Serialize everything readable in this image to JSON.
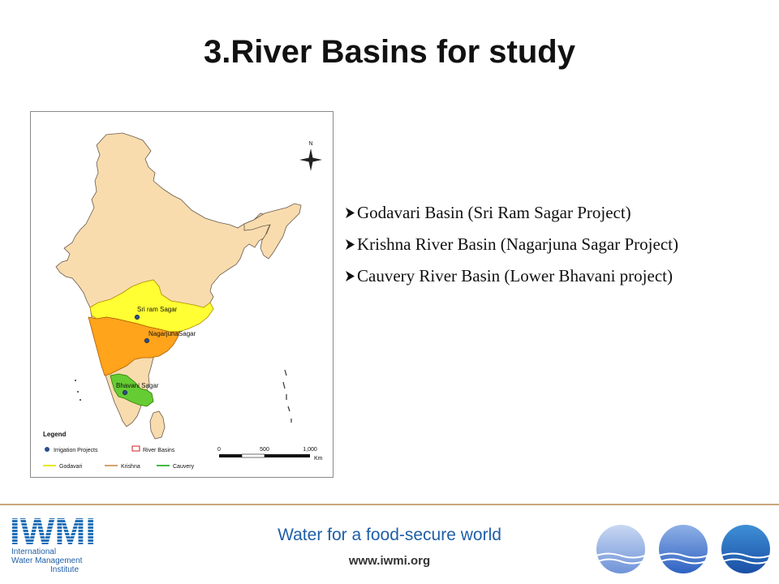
{
  "slide": {
    "title": "3.River Basins for study",
    "bullets": [
      "Godavari Basin (Sri Ram Sagar Project)",
      "Krishna River Basin (Nagarjuna Sagar Project)",
      "Cauvery River Basin (Lower Bhavani project)"
    ]
  },
  "map": {
    "north_label": "N",
    "places": [
      {
        "name": "Sri ram Sagar",
        "x": 168,
        "y": 390
      },
      {
        "name": "NagarjunaSagar",
        "x": 180,
        "y": 419
      },
      {
        "name": "Bhavani Sagar",
        "x": 153,
        "y": 483
      }
    ],
    "legend": {
      "title": "Legend",
      "irrigation": "Irrigation Projects",
      "river_basins": "River Basins",
      "godavari": "Godavari",
      "krishna": "Krishna",
      "cauvery": "Cauvery"
    },
    "scale": {
      "labels": [
        "0",
        "500",
        "1,000"
      ],
      "unit": "Km"
    },
    "colors": {
      "land": "#f8dcae",
      "godavari": "#ffff33",
      "krishna": "#ffa41b",
      "cauvery": "#66cc33",
      "point": "#2a4e8e"
    }
  },
  "footer": {
    "tagline": "Water for a food-secure world",
    "url": "www.iwmi.org",
    "logo_text": "IWMI",
    "logo_lines": [
      "International",
      "Water Management",
      "Institute"
    ]
  }
}
